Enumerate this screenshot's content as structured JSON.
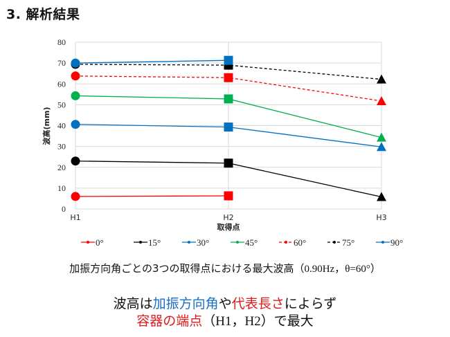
{
  "slide": {
    "title": "3. 解析結果",
    "caption_main": "加振方向角ごとの3つの取得点における最大波高",
    "caption_params": "（0.90Hz，θ=60°）",
    "conclusion": {
      "line1": [
        {
          "text": "波高は",
          "color": "black"
        },
        {
          "text": "加振方向角",
          "color": "blue"
        },
        {
          "text": "や",
          "color": "black"
        },
        {
          "text": "代表長さ",
          "color": "red"
        },
        {
          "text": "によらず",
          "color": "black"
        }
      ],
      "line2": [
        {
          "text": "容器の端点",
          "color": "red"
        },
        {
          "text": "（H1，H2）",
          "color": "black"
        },
        {
          "text": "で最大",
          "color": "black"
        }
      ]
    }
  },
  "chart_data": {
    "type": "line",
    "title": "",
    "xlabel": "取得点",
    "ylabel": "波高(mm)",
    "categories": [
      "H1",
      "H2",
      "H3"
    ],
    "ylim": [
      0,
      80
    ],
    "yticks": [
      "0",
      "10",
      "20",
      "30",
      "40",
      "50",
      "60",
      "70",
      "80"
    ],
    "grid": true,
    "legend_position": "bottom",
    "series": [
      {
        "name": "0°",
        "color": "#ff0000",
        "dash": false,
        "values": [
          6.0,
          6.3,
          null
        ]
      },
      {
        "name": "15°",
        "color": "#000000",
        "dash": false,
        "values": [
          23.0,
          22.0,
          5.8
        ]
      },
      {
        "name": "30°",
        "color": "#0070c0",
        "dash": false,
        "values": [
          40.6,
          39.3,
          29.8
        ]
      },
      {
        "name": "45°",
        "color": "#00b050",
        "dash": false,
        "values": [
          54.3,
          52.8,
          34.3
        ]
      },
      {
        "name": "60°",
        "color": "#ff0000",
        "dash": true,
        "values": [
          63.8,
          63.0,
          51.8
        ]
      },
      {
        "name": "75°",
        "color": "#000000",
        "dash": true,
        "values": [
          69.4,
          69.0,
          62.2
        ]
      },
      {
        "name": "90°",
        "color": "#0070c0",
        "dash": false,
        "values": [
          70.0,
          71.3,
          null
        ]
      }
    ],
    "markers": [
      "circle",
      "square",
      "triangle"
    ]
  }
}
